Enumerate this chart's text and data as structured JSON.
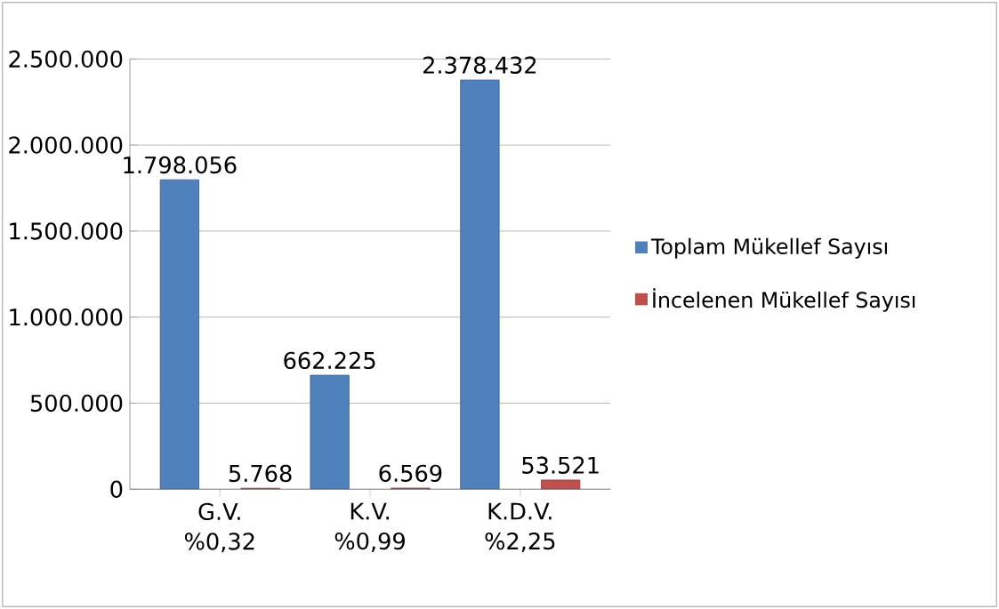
{
  "chart_data": {
    "type": "bar",
    "categories": [
      "G.V. %0,32",
      "K.V. %0,99",
      "K.D.V. %2,25"
    ],
    "series": [
      {
        "name": "Toplam Mükellef Sayısı",
        "color": "#4f81bd",
        "values": [
          1798056,
          662225,
          2378432
        ],
        "value_labels": [
          "1.798.056",
          "662.225",
          "2.378.432"
        ]
      },
      {
        "name": "İncelenen Mükellef Sayısı",
        "color": "#c0504d",
        "values": [
          5768,
          6569,
          53521
        ],
        "value_labels": [
          "5.768",
          "6.569",
          "53.521"
        ]
      }
    ],
    "ylim": [
      0,
      2500000
    ],
    "yticks": [
      0,
      {
        "value": 500000,
        "label": "500.000"
      },
      {
        "value": 1000000,
        "label": "1.000.000"
      },
      {
        "value": 1500000,
        "label": "1.500.000"
      },
      {
        "value": 2000000,
        "label": "2.000.000"
      },
      {
        "value": 2500000,
        "label": "2.500.000"
      }
    ],
    "grid": "y",
    "legend": "right"
  }
}
